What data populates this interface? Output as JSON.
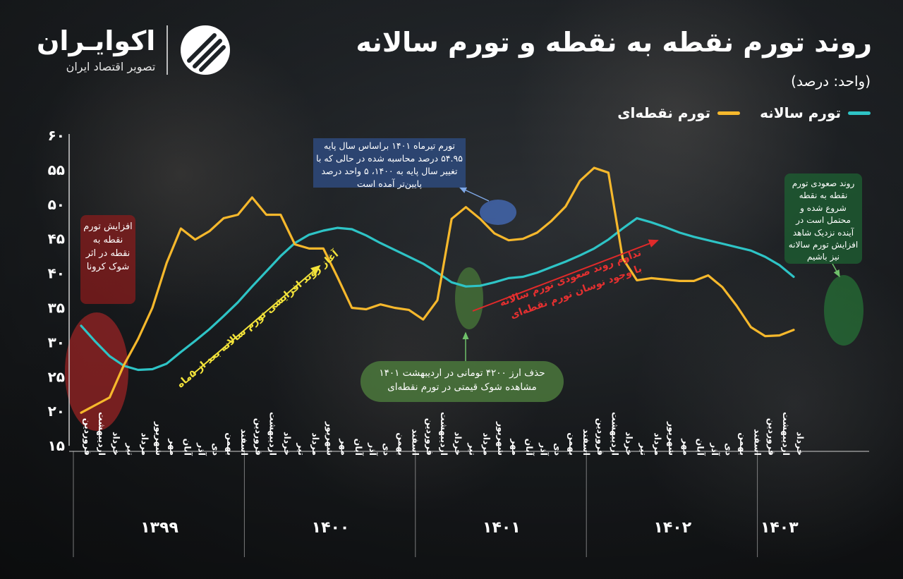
{
  "header": {
    "title": "روند تورم نقطه به نقطه و تورم سالانه",
    "unit": "(واحد: درصد)"
  },
  "logo": {
    "name": "اکوایـران",
    "subtitle": "تصویر اقتصاد ایران",
    "icon": "stripes-circle-icon"
  },
  "legend": [
    {
      "name": "تورم سالانه",
      "color": "#2ec4c6"
    },
    {
      "name": "تورم نقطه‌ای",
      "color": "#f6b82c"
    }
  ],
  "chart_data": {
    "type": "line",
    "title": "روند تورم نقطه به نقطه و تورم سالانه",
    "ylim": [
      15,
      60
    ],
    "y_ticks": [
      "۶۰",
      "۵۵",
      "۵۰",
      "۴۵",
      "۴۰",
      "۳۵",
      "۳۰",
      "۲۵",
      "۲۰",
      "۱۵"
    ],
    "y_tick_values": [
      60,
      55,
      50,
      45,
      40,
      35,
      30,
      25,
      20,
      15
    ],
    "grid": false,
    "legend_position": "top-right",
    "x": [
      "فروردین",
      "اردیبهشت",
      "خرداد",
      "تیر",
      "مرداد",
      "شهریور",
      "مهر",
      "آبان",
      "آذر",
      "دی",
      "بهمن",
      "اسفند",
      "فروردین",
      "اردیبهشت",
      "خرداد",
      "تیر",
      "مرداد",
      "شهریور",
      "مهر",
      "آبان",
      "آذر",
      "دی",
      "بهمن",
      "اسفند",
      "فروردین",
      "اردیبهشت",
      "خرداد",
      "تیر",
      "مرداد",
      "شهریور",
      "مهر",
      "آبان",
      "آذر",
      "دی",
      "بهمن",
      "اسفند",
      "فروردین",
      "اردیبهشت",
      "خرداد",
      "تیر",
      "مرداد",
      "شهریور",
      "مهر",
      "آبان",
      "آذر",
      "دی",
      "بهمن",
      "اسفند",
      "فروردین",
      "اردیبهشت",
      "خرداد"
    ],
    "years": [
      {
        "label": "۱۳۹۹",
        "start": 0,
        "end": 11
      },
      {
        "label": "۱۴۰۰",
        "start": 12,
        "end": 23
      },
      {
        "label": "۱۴۰۱",
        "start": 24,
        "end": 35
      },
      {
        "label": "۱۴۰۲",
        "start": 36,
        "end": 47
      },
      {
        "label": "۱۴۰۳",
        "start": 48,
        "end": 50
      }
    ],
    "series": [
      {
        "name": "تورم سالانه",
        "color": "#2ec4c6",
        "values": [
          32.4,
          30.1,
          28.0,
          26.6,
          26.0,
          26.1,
          26.9,
          28.6,
          30.2,
          31.9,
          33.8,
          35.8,
          38.1,
          40.3,
          42.5,
          44.4,
          45.6,
          46.2,
          46.6,
          46.4,
          45.5,
          44.4,
          43.4,
          42.4,
          41.4,
          40.1,
          38.7,
          38.1,
          38.2,
          38.7,
          39.3,
          39.5,
          40.1,
          40.9,
          41.7,
          42.6,
          43.6,
          44.9,
          46.5,
          48.0,
          47.4,
          46.7,
          45.9,
          45.3,
          44.8,
          44.3,
          43.8,
          43.3,
          42.4,
          41.2,
          39.5
        ]
      },
      {
        "name": "تورم نقطه‌ای",
        "color": "#f6b82c",
        "values": [
          19.8,
          20.9,
          22.0,
          26.7,
          30.5,
          35.0,
          41.5,
          46.5,
          44.9,
          46.1,
          48.0,
          48.5,
          51.0,
          48.5,
          48.5,
          44.2,
          43.6,
          43.6,
          39.4,
          35.0,
          34.8,
          35.5,
          35.0,
          34.7,
          33.3,
          36.1,
          47.9,
          49.6,
          47.9,
          45.8,
          44.8,
          45.0,
          45.9,
          47.6,
          49.7,
          53.4,
          55.3,
          54.6,
          42.2,
          39.0,
          39.3,
          39.1,
          38.9,
          38.9,
          39.7,
          38.0,
          35.3,
          32.2,
          30.9,
          31.0,
          31.8
        ]
      }
    ],
    "annotations": [
      {
        "text": "افزایش تورم نقطه به نقطه در اثر شوک کرونا"
      },
      {
        "text": "آغاز روند افزایشی تورم سالانه بعد از ۵ماه"
      },
      {
        "text": "تورم تیرماه ۱۴۰۱ براساس سال پایه ۵۴.۹۵ درصد محاسبه شده در حالی که با تغییر سال پایه به ۱۴۰۰، ۵ واحد درصد پایین‌تر آمده است"
      },
      {
        "text": "حذف ارز ۴۲۰۰ تومانی در اردیبهشت ۱۴۰۱ مشاهده شوک قیمتی در تورم نقطه‌ای"
      },
      {
        "text": "تداوم روند صعودی تورم سالانه با وجود نوسان تورم نقطه‌ای"
      },
      {
        "text": "روند صعودی تورم نقطه به نقطه شروع شده و محتمل است در آینده نزدیک شاهد افزایش تورم سالانه نیز باشیم"
      }
    ]
  }
}
